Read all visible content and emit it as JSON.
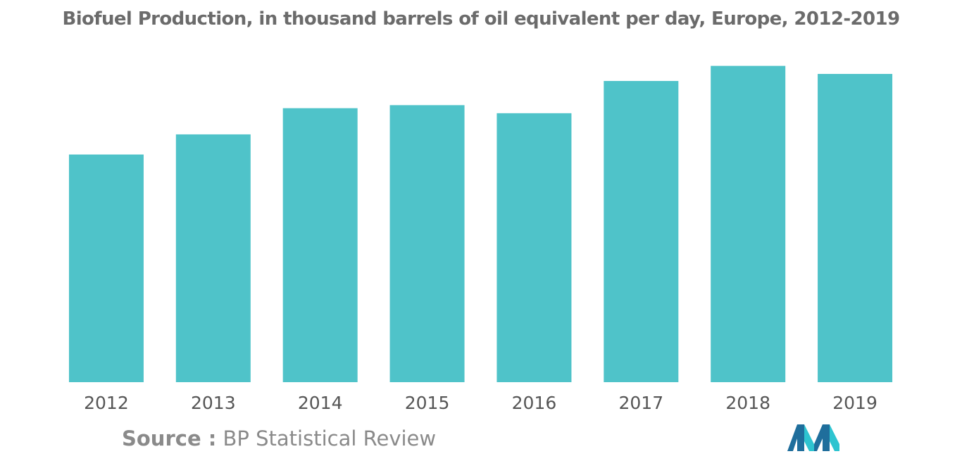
{
  "chart_data": {
    "type": "bar",
    "title": "Biofuel Production, in thousand barrels of oil equivalent per day, Europe, 2012-2019",
    "categories": [
      "2012",
      "2013",
      "2014",
      "2015",
      "2016",
      "2017",
      "2018",
      "2019"
    ],
    "values": [
      226,
      246,
      272,
      275,
      267,
      299,
      314,
      306
    ],
    "xlabel": "",
    "ylabel": "",
    "ylim": [
      0,
      320
    ],
    "grid": false,
    "legend": "none",
    "bar_color": "#4fc3c9"
  },
  "source": {
    "label": "Source :",
    "text": "BP Statistical Review"
  },
  "logo": {
    "icon": "mordor-intelligence-logo-icon",
    "colors": [
      "#1f6e9c",
      "#2ec4d0"
    ]
  }
}
